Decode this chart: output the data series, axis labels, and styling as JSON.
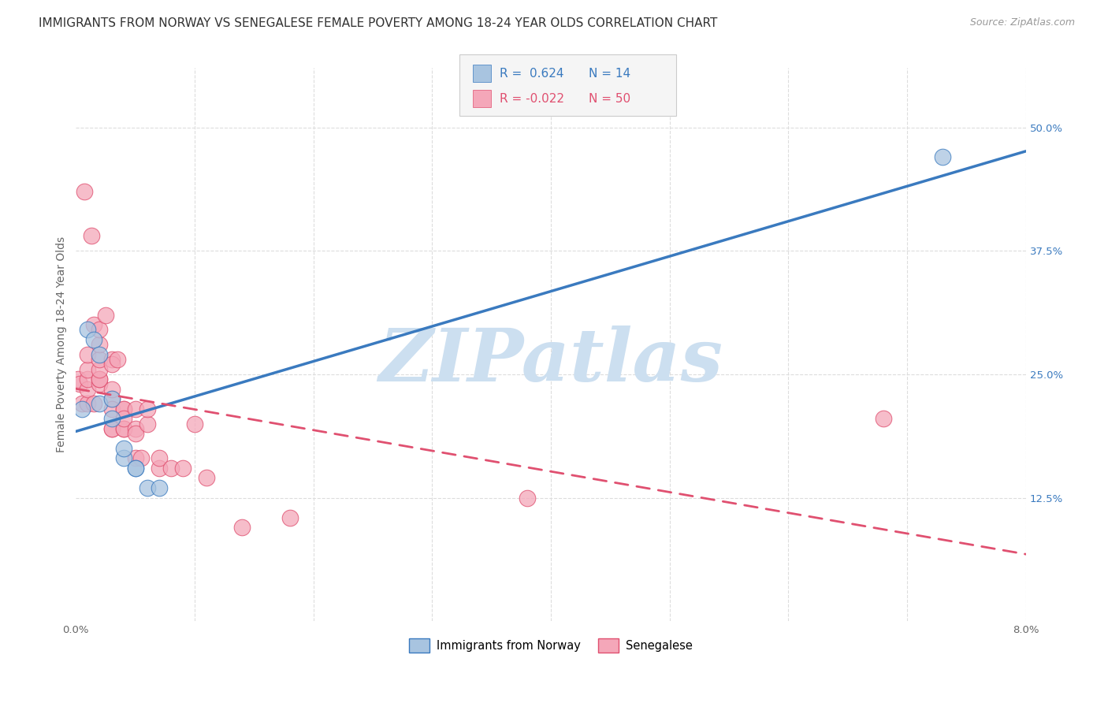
{
  "title": "IMMIGRANTS FROM NORWAY VS SENEGALESE FEMALE POVERTY AMONG 18-24 YEAR OLDS CORRELATION CHART",
  "source": "Source: ZipAtlas.com",
  "ylabel": "Female Poverty Among 18-24 Year Olds",
  "xlim": [
    0.0,
    0.08
  ],
  "ylim": [
    0.0,
    0.56
  ],
  "xticks": [
    0.0,
    0.01,
    0.02,
    0.03,
    0.04,
    0.05,
    0.06,
    0.07,
    0.08
  ],
  "xticklabels": [
    "0.0%",
    "",
    "",
    "",
    "",
    "",
    "",
    "",
    "8.0%"
  ],
  "yticks_right": [
    0.0,
    0.125,
    0.25,
    0.375,
    0.5
  ],
  "ytick_right_labels": [
    "",
    "12.5%",
    "25.0%",
    "37.5%",
    "50.0%"
  ],
  "norway_color": "#a8c4e0",
  "senegal_color": "#f4a7b9",
  "norway_line_color": "#3a7abf",
  "senegal_line_color": "#e05070",
  "norway_r": 0.624,
  "norway_n": 14,
  "senegal_r": -0.022,
  "senegal_n": 50,
  "watermark": "ZIPatlas",
  "watermark_color": "#ccdff0",
  "background_color": "#ffffff",
  "norway_x": [
    0.0005,
    0.001,
    0.0015,
    0.002,
    0.002,
    0.003,
    0.003,
    0.004,
    0.004,
    0.005,
    0.005,
    0.006,
    0.007,
    0.073
  ],
  "norway_y": [
    0.215,
    0.295,
    0.285,
    0.27,
    0.22,
    0.225,
    0.205,
    0.165,
    0.175,
    0.155,
    0.155,
    0.135,
    0.135,
    0.47
  ],
  "senegal_x": [
    0.0002,
    0.0003,
    0.0005,
    0.0007,
    0.001,
    0.001,
    0.001,
    0.001,
    0.001,
    0.0013,
    0.0015,
    0.0015,
    0.002,
    0.002,
    0.002,
    0.002,
    0.002,
    0.002,
    0.002,
    0.0025,
    0.003,
    0.003,
    0.003,
    0.003,
    0.003,
    0.003,
    0.003,
    0.0035,
    0.004,
    0.004,
    0.004,
    0.004,
    0.004,
    0.005,
    0.005,
    0.005,
    0.005,
    0.0055,
    0.006,
    0.006,
    0.007,
    0.007,
    0.008,
    0.009,
    0.01,
    0.011,
    0.014,
    0.018,
    0.038,
    0.068
  ],
  "senegal_y": [
    0.245,
    0.24,
    0.22,
    0.435,
    0.22,
    0.235,
    0.245,
    0.255,
    0.27,
    0.39,
    0.3,
    0.22,
    0.24,
    0.245,
    0.245,
    0.255,
    0.265,
    0.28,
    0.295,
    0.31,
    0.265,
    0.26,
    0.225,
    0.235,
    0.215,
    0.195,
    0.195,
    0.265,
    0.215,
    0.215,
    0.195,
    0.195,
    0.205,
    0.215,
    0.195,
    0.19,
    0.165,
    0.165,
    0.2,
    0.215,
    0.155,
    0.165,
    0.155,
    0.155,
    0.2,
    0.145,
    0.095,
    0.105,
    0.125,
    0.205
  ],
  "grid_color": "#dddddd",
  "title_fontsize": 11,
  "label_fontsize": 10,
  "tick_fontsize": 9.5,
  "legend_fontsize": 11
}
